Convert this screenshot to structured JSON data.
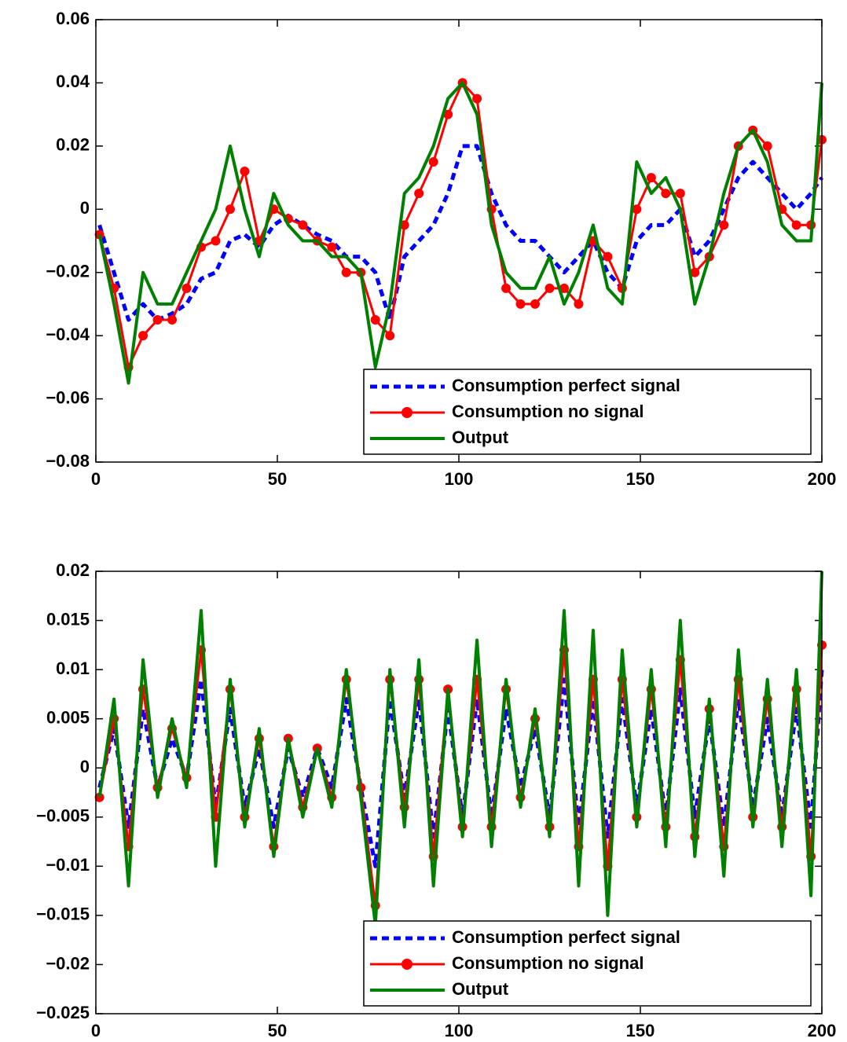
{
  "chart_data": [
    {
      "type": "line",
      "x": [
        1,
        5,
        9,
        13,
        17,
        21,
        25,
        29,
        33,
        37,
        41,
        45,
        49,
        53,
        57,
        61,
        65,
        69,
        73,
        77,
        81,
        85,
        89,
        93,
        97,
        101,
        105,
        109,
        113,
        117,
        121,
        125,
        129,
        133,
        137,
        141,
        145,
        149,
        153,
        157,
        161,
        165,
        169,
        173,
        177,
        181,
        185,
        189,
        193,
        197,
        200
      ],
      "series": [
        {
          "name": "Consumption perfect signal",
          "color": "#0000ff",
          "style": "dashed",
          "values": [
            -0.005,
            -0.02,
            -0.035,
            -0.03,
            -0.035,
            -0.033,
            -0.03,
            -0.022,
            -0.02,
            -0.01,
            -0.008,
            -0.012,
            -0.005,
            -0.002,
            -0.005,
            -0.008,
            -0.01,
            -0.015,
            -0.015,
            -0.02,
            -0.035,
            -0.015,
            -0.01,
            -0.005,
            0.005,
            0.02,
            0.02,
            0.005,
            -0.005,
            -0.01,
            -0.01,
            -0.015,
            -0.02,
            -0.015,
            -0.01,
            -0.02,
            -0.025,
            -0.01,
            -0.005,
            -0.005,
            0,
            -0.015,
            -0.01,
            0,
            0.01,
            0.015,
            0.01,
            0.005,
            0,
            0.005,
            0.01
          ]
        },
        {
          "name": "Consumption no signal",
          "color": "#ff0000",
          "style": "markers",
          "values": [
            -0.008,
            -0.025,
            -0.05,
            -0.04,
            -0.035,
            -0.035,
            -0.025,
            -0.012,
            -0.01,
            0,
            0.012,
            -0.01,
            0,
            -0.003,
            -0.005,
            -0.01,
            -0.012,
            -0.02,
            -0.02,
            -0.035,
            -0.04,
            -0.005,
            0.005,
            0.015,
            0.03,
            0.04,
            0.035,
            0,
            -0.025,
            -0.03,
            -0.03,
            -0.025,
            -0.025,
            -0.03,
            -0.01,
            -0.015,
            -0.025,
            0,
            0.01,
            0.005,
            0.005,
            -0.02,
            -0.015,
            -0.005,
            0.02,
            0.025,
            0.02,
            0,
            -0.005,
            -0.005,
            0.022
          ]
        },
        {
          "name": "Output",
          "color": "#008000",
          "style": "solid",
          "values": [
            -0.008,
            -0.03,
            -0.055,
            -0.02,
            -0.03,
            -0.03,
            -0.02,
            -0.01,
            0,
            0.02,
            0,
            -0.015,
            0.005,
            -0.005,
            -0.01,
            -0.01,
            -0.015,
            -0.015,
            -0.02,
            -0.05,
            -0.03,
            0.005,
            0.01,
            0.02,
            0.035,
            0.04,
            0.03,
            -0.005,
            -0.02,
            -0.025,
            -0.025,
            -0.015,
            -0.03,
            -0.02,
            -0.005,
            -0.025,
            -0.03,
            0.015,
            0.005,
            0.01,
            0,
            -0.03,
            -0.015,
            0.005,
            0.02,
            0.025,
            0.015,
            -0.005,
            -0.01,
            -0.01,
            0.04
          ]
        }
      ],
      "xlim": [
        0,
        200
      ],
      "xticks": [
        0,
        50,
        100,
        150,
        200
      ],
      "ylim": [
        -0.08,
        0.06
      ],
      "yticks": [
        {
          "value": -0.08,
          "label": "−0.08"
        },
        {
          "value": -0.06,
          "label": "−0.06"
        },
        {
          "value": -0.04,
          "label": "−0.04"
        },
        {
          "value": -0.02,
          "label": "−0.02"
        },
        0,
        0.02,
        0.04,
        0.06
      ],
      "legend": "lower right"
    },
    {
      "type": "line",
      "x": [
        1,
        5,
        9,
        13,
        17,
        21,
        25,
        29,
        33,
        37,
        41,
        45,
        49,
        53,
        57,
        61,
        65,
        69,
        73,
        77,
        81,
        85,
        89,
        93,
        97,
        101,
        105,
        109,
        113,
        117,
        121,
        125,
        129,
        133,
        137,
        141,
        145,
        149,
        153,
        157,
        161,
        165,
        169,
        173,
        177,
        181,
        185,
        189,
        193,
        197,
        200
      ],
      "series": [
        {
          "name": "Consumption perfect signal",
          "color": "#0000ff",
          "style": "dashed",
          "values": [
            -0.002,
            0.004,
            -0.006,
            0.006,
            -0.002,
            0.003,
            -0.001,
            0.009,
            -0.004,
            0.006,
            -0.004,
            0.002,
            -0.006,
            0.002,
            -0.003,
            0.002,
            -0.002,
            0.007,
            -0.002,
            -0.01,
            0.007,
            -0.003,
            0.007,
            -0.007,
            0.006,
            -0.005,
            0.007,
            -0.005,
            0.006,
            -0.002,
            0.004,
            -0.005,
            0.009,
            -0.006,
            0.007,
            -0.007,
            0.007,
            -0.004,
            0.006,
            -0.005,
            0.008,
            -0.005,
            0.005,
            -0.006,
            0.007,
            -0.004,
            0.005,
            -0.005,
            0.006,
            -0.006,
            0.01
          ]
        },
        {
          "name": "Consumption no signal",
          "color": "#ff0000",
          "style": "markers",
          "values": [
            -0.003,
            0.005,
            -0.008,
            0.008,
            -0.002,
            0.004,
            -0.001,
            0.012,
            -0.005,
            0.008,
            -0.005,
            0.003,
            -0.008,
            0.003,
            -0.004,
            0.002,
            -0.003,
            0.009,
            -0.002,
            -0.014,
            0.009,
            -0.004,
            0.009,
            -0.009,
            0.008,
            -0.006,
            0.009,
            -0.006,
            0.008,
            -0.003,
            0.005,
            -0.006,
            0.012,
            -0.008,
            0.009,
            -0.01,
            0.009,
            -0.005,
            0.008,
            -0.006,
            0.011,
            -0.007,
            0.006,
            -0.008,
            0.009,
            -0.005,
            0.007,
            -0.006,
            0.008,
            -0.009,
            0.0125
          ]
        },
        {
          "name": "Output",
          "color": "#008000",
          "style": "solid",
          "values": [
            -0.003,
            0.007,
            -0.012,
            0.011,
            -0.003,
            0.005,
            -0.002,
            0.016,
            -0.01,
            0.009,
            -0.006,
            0.004,
            -0.009,
            0.003,
            -0.005,
            0.002,
            -0.004,
            0.01,
            -0.003,
            -0.016,
            0.01,
            -0.006,
            0.011,
            -0.012,
            0.008,
            -0.007,
            0.013,
            -0.008,
            0.009,
            -0.004,
            0.006,
            -0.007,
            0.016,
            -0.012,
            0.014,
            -0.015,
            0.012,
            -0.006,
            0.01,
            -0.008,
            0.015,
            -0.009,
            0.007,
            -0.011,
            0.012,
            -0.006,
            0.009,
            -0.008,
            0.01,
            -0.013,
            0.02
          ]
        }
      ],
      "xlim": [
        0,
        200
      ],
      "xticks": [
        0,
        50,
        100,
        150,
        200
      ],
      "ylim": [
        -0.025,
        0.02
      ],
      "yticks": [
        {
          "value": -0.025,
          "label": "−0.025"
        },
        {
          "value": -0.02,
          "label": "−0.02"
        },
        {
          "value": -0.015,
          "label": "−0.015"
        },
        {
          "value": -0.01,
          "label": "−0.01"
        },
        {
          "value": -0.005,
          "label": "−0.005"
        },
        0,
        0.005,
        0.01,
        0.015,
        0.02
      ],
      "legend": "lower right"
    }
  ]
}
